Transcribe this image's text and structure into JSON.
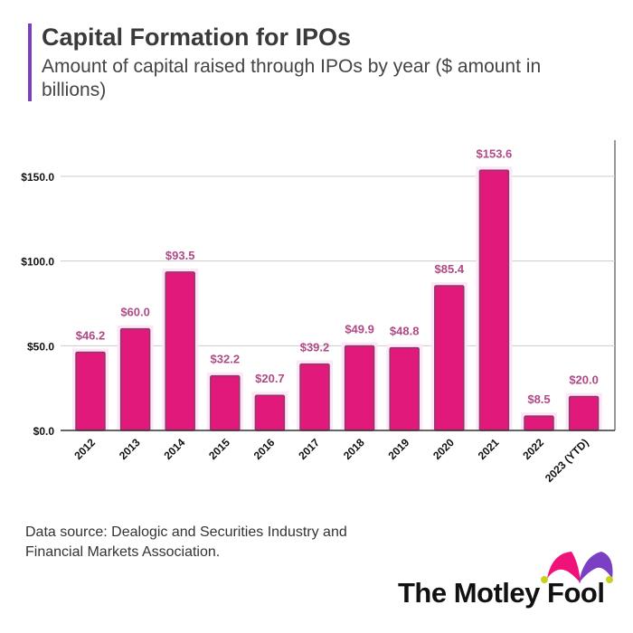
{
  "title": "Capital Formation for IPOs",
  "subtitle": "Amount of capital raised through IPOs by year ($ amount in billions)",
  "source": "Data source: Dealogic and Securities Industry and Financial Markets Association.",
  "logo": "The Motley Fool",
  "colors": {
    "bar": "#e0197a",
    "bar_edge": "#8c3a6b",
    "label": "#b04a86",
    "accent": "#7b3fc4"
  },
  "chart_data": {
    "type": "bar",
    "title": "",
    "xlabel": "",
    "ylabel": "",
    "categories": [
      "2012",
      "2013",
      "2014",
      "2015",
      "2016",
      "2017",
      "2018",
      "2019",
      "2020",
      "2021",
      "2022",
      "2023 (YTD)"
    ],
    "values": [
      46.2,
      60.0,
      93.5,
      32.2,
      20.7,
      39.2,
      49.9,
      48.8,
      85.4,
      153.6,
      8.5,
      20.0
    ],
    "data_labels": [
      "$46.2",
      "$60.0",
      "$93.5",
      "$32.2",
      "$20.7",
      "$39.2",
      "$49.9",
      "$48.8",
      "$85.4",
      "$153.6",
      "$8.5",
      "$20.0"
    ],
    "ylim": [
      0,
      160
    ],
    "yticks": [
      0,
      50,
      100,
      150
    ],
    "ytick_labels": [
      "$0.0",
      "$50.0",
      "$100.0",
      "$150.0"
    ],
    "grid": true,
    "legend": "none"
  }
}
